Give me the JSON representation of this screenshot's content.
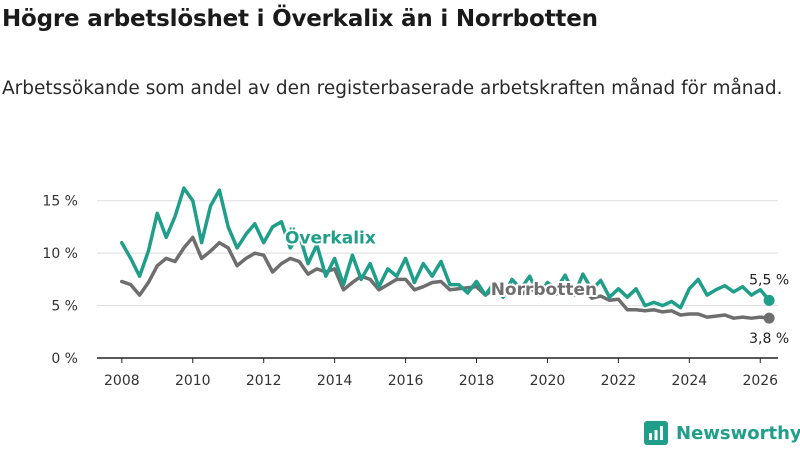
{
  "title": "Högre arbetslöshet i Överkalix än i Norrbotten",
  "subtitle": "Arbetssökande som andel av den registerbaserade arbetskraften månad för månad.",
  "brand": {
    "name": "Newsworthy",
    "icon": "bar-chart-logo-icon",
    "color": "#1f9e89"
  },
  "colors": {
    "overkalix": "#1f9e89",
    "norrbotten": "#6e6e6e",
    "axis": "#222222",
    "grid": "#dddddd"
  },
  "chart_data": {
    "type": "line",
    "title": "Högre arbetslöshet i Överkalix än i Norrbotten",
    "xlabel": "",
    "ylabel": "",
    "xlim": [
      2007.3,
      2026.5
    ],
    "ylim": [
      0,
      16.5
    ],
    "y_ticks": [
      0,
      5,
      10,
      15
    ],
    "y_tick_labels": [
      "0 %",
      "5 %",
      "10 %",
      "15 %"
    ],
    "x_ticks": [
      2008,
      2010,
      2012,
      2014,
      2016,
      2018,
      2020,
      2022,
      2024,
      2026
    ],
    "x_tick_labels": [
      "2008",
      "2010",
      "2012",
      "2014",
      "2016",
      "2018",
      "2020",
      "2022",
      "2024",
      "2026"
    ],
    "series": [
      {
        "name": "Överkalix",
        "label": "Överkalix",
        "end_label": "5,5 %",
        "color": "#1f9e89",
        "x": [
          2008.0,
          2008.25,
          2008.5,
          2008.75,
          2009.0,
          2009.25,
          2009.5,
          2009.75,
          2010.0,
          2010.25,
          2010.5,
          2010.75,
          2011.0,
          2011.25,
          2011.5,
          2011.75,
          2012.0,
          2012.25,
          2012.5,
          2012.75,
          2013.0,
          2013.25,
          2013.5,
          2013.75,
          2014.0,
          2014.25,
          2014.5,
          2014.75,
          2015.0,
          2015.25,
          2015.5,
          2015.75,
          2016.0,
          2016.25,
          2016.5,
          2016.75,
          2017.0,
          2017.25,
          2017.5,
          2017.75,
          2018.0,
          2018.25,
          2018.5,
          2018.75,
          2019.0,
          2019.25,
          2019.5,
          2019.75,
          2020.0,
          2020.25,
          2020.5,
          2020.75,
          2021.0,
          2021.25,
          2021.5,
          2021.75,
          2022.0,
          2022.25,
          2022.5,
          2022.75,
          2023.0,
          2023.25,
          2023.5,
          2023.75,
          2024.0,
          2024.25,
          2024.5,
          2024.75,
          2025.0,
          2025.25,
          2025.5,
          2025.75,
          2026.0,
          2026.25
        ],
        "values": [
          11.0,
          9.5,
          7.8,
          10.2,
          13.8,
          11.5,
          13.5,
          16.2,
          15.0,
          11.0,
          14.5,
          16.0,
          12.5,
          10.5,
          11.8,
          12.8,
          11.0,
          12.5,
          13.0,
          10.5,
          11.8,
          9.0,
          10.8,
          7.8,
          9.5,
          7.0,
          9.8,
          7.5,
          9.0,
          6.8,
          8.5,
          7.8,
          9.5,
          7.2,
          9.0,
          7.8,
          9.2,
          7.0,
          7.0,
          6.2,
          7.3,
          6.0,
          7.2,
          5.8,
          7.5,
          6.6,
          7.8,
          6.0,
          7.2,
          6.6,
          7.9,
          6.0,
          8.0,
          6.5,
          7.4,
          5.8,
          6.6,
          5.8,
          6.6,
          5.0,
          5.3,
          5.0,
          5.4,
          4.8,
          6.6,
          7.5,
          6.0,
          6.5,
          6.9,
          6.3,
          6.8,
          6.0,
          6.5,
          5.5
        ]
      },
      {
        "name": "Norrbotten",
        "label": "Norrbotten",
        "end_label": "3,8 %",
        "color": "#6e6e6e",
        "x": [
          2008.0,
          2008.25,
          2008.5,
          2008.75,
          2009.0,
          2009.25,
          2009.5,
          2009.75,
          2010.0,
          2010.25,
          2010.5,
          2010.75,
          2011.0,
          2011.25,
          2011.5,
          2011.75,
          2012.0,
          2012.25,
          2012.5,
          2012.75,
          2013.0,
          2013.25,
          2013.5,
          2013.75,
          2014.0,
          2014.25,
          2014.5,
          2014.75,
          2015.0,
          2015.25,
          2015.5,
          2015.75,
          2016.0,
          2016.25,
          2016.5,
          2016.75,
          2017.0,
          2017.25,
          2017.5,
          2017.75,
          2018.0,
          2018.25,
          2018.5,
          2018.75,
          2019.0,
          2019.25,
          2019.5,
          2019.75,
          2020.0,
          2020.25,
          2020.5,
          2020.75,
          2021.0,
          2021.25,
          2021.5,
          2021.75,
          2022.0,
          2022.25,
          2022.5,
          2022.75,
          2023.0,
          2023.25,
          2023.5,
          2023.75,
          2024.0,
          2024.25,
          2024.5,
          2024.75,
          2025.0,
          2025.25,
          2025.5,
          2025.75,
          2026.0,
          2026.25
        ],
        "values": [
          7.3,
          7.0,
          6.0,
          7.2,
          8.8,
          9.5,
          9.2,
          10.5,
          11.5,
          9.5,
          10.2,
          11.0,
          10.5,
          8.8,
          9.5,
          10.0,
          9.8,
          8.2,
          9.0,
          9.5,
          9.2,
          8.0,
          8.5,
          8.2,
          8.5,
          6.5,
          7.2,
          7.8,
          7.5,
          6.5,
          7.0,
          7.5,
          7.5,
          6.5,
          6.8,
          7.2,
          7.3,
          6.5,
          6.6,
          6.7,
          6.8,
          6.0,
          6.6,
          6.1,
          6.4,
          6.0,
          6.7,
          6.0,
          6.5,
          6.1,
          6.8,
          6.2,
          6.6,
          5.7,
          5.9,
          5.5,
          5.6,
          4.6,
          4.6,
          4.5,
          4.6,
          4.4,
          4.5,
          4.1,
          4.2,
          4.2,
          3.9,
          4.0,
          4.1,
          3.8,
          3.9,
          3.8,
          3.9,
          3.8
        ]
      }
    ]
  }
}
